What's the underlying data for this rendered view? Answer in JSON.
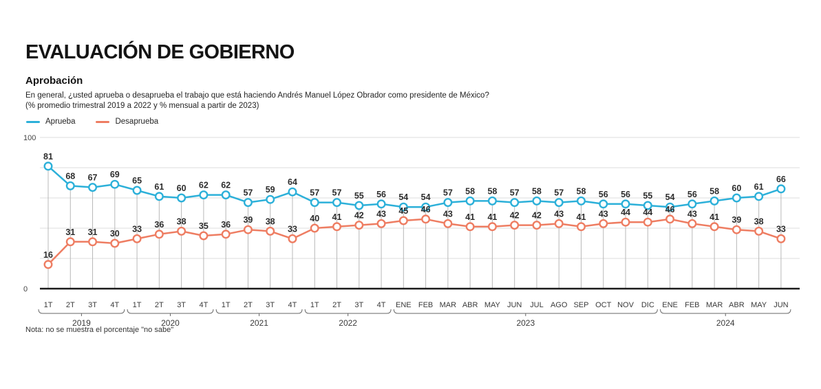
{
  "header": {
    "title": "EVALUACIÓN DE GOBIERNO",
    "subtitle": "Aprobación",
    "question_line1": "En general, ¿usted aprueba o desaprueba el trabajo que está haciendo Andrés Manuel López Obrador como presidente de México?",
    "question_line2": "(% promedio trimestral 2019 a 2022 y % mensual a partir de 2023)"
  },
  "legend": {
    "items": [
      {
        "label": "Aprueba",
        "color": "#2cb0d9"
      },
      {
        "label": "Desaprueba",
        "color": "#ee7d62"
      }
    ]
  },
  "note": "Nota: no se muestra el porcentaje \"no sabe\"",
  "chart_data": {
    "type": "line",
    "title": "Aprobación",
    "categories": [
      "1T",
      "2T",
      "3T",
      "4T",
      "1T",
      "2T",
      "3T",
      "4T",
      "1T",
      "2T",
      "3T",
      "4T",
      "1T",
      "2T",
      "3T",
      "4T",
      "ENE",
      "FEB",
      "MAR",
      "ABR",
      "MAY",
      "JUN",
      "JUL",
      "AGO",
      "SEP",
      "OCT",
      "NOV",
      "DIC",
      "ENE",
      "FEB",
      "MAR",
      "ABR",
      "MAY",
      "JUN"
    ],
    "groups": [
      {
        "label": "2019",
        "start": 0,
        "end": 3
      },
      {
        "label": "2020",
        "start": 4,
        "end": 7
      },
      {
        "label": "2021",
        "start": 8,
        "end": 11
      },
      {
        "label": "2022",
        "start": 12,
        "end": 15
      },
      {
        "label": "2023",
        "start": 16,
        "end": 27
      },
      {
        "label": "2024",
        "start": 28,
        "end": 33
      }
    ],
    "series": [
      {
        "name": "Aprueba",
        "color": "#2cb0d9",
        "values": [
          81,
          68,
          67,
          69,
          65,
          61,
          60,
          62,
          62,
          57,
          59,
          64,
          57,
          57,
          55,
          56,
          54,
          54,
          57,
          58,
          58,
          57,
          58,
          57,
          58,
          56,
          56,
          55,
          54,
          56,
          58,
          60,
          61,
          66
        ]
      },
      {
        "name": "Desaprueba",
        "color": "#ee7d62",
        "values": [
          16,
          31,
          31,
          30,
          33,
          36,
          38,
          35,
          36,
          39,
          38,
          33,
          40,
          41,
          42,
          43,
          45,
          46,
          43,
          41,
          41,
          42,
          42,
          43,
          41,
          43,
          44,
          44,
          46,
          43,
          41,
          39,
          38,
          33
        ]
      }
    ],
    "ylim": [
      0,
      100
    ],
    "ytick_labels": [
      "0",
      "100"
    ],
    "gridline_step": 20,
    "grid": "horizontal",
    "legend_position": "top-left",
    "point_labels": true,
    "colors": {
      "grid": "#dcdcdc",
      "axis": "#1a1a1a",
      "dropline": "#b8b8b8",
      "value_label": "#2d2d2d",
      "axis_label": "#3a3a3a",
      "bracket": "#666666",
      "marker_fill": "#ffffff"
    }
  }
}
